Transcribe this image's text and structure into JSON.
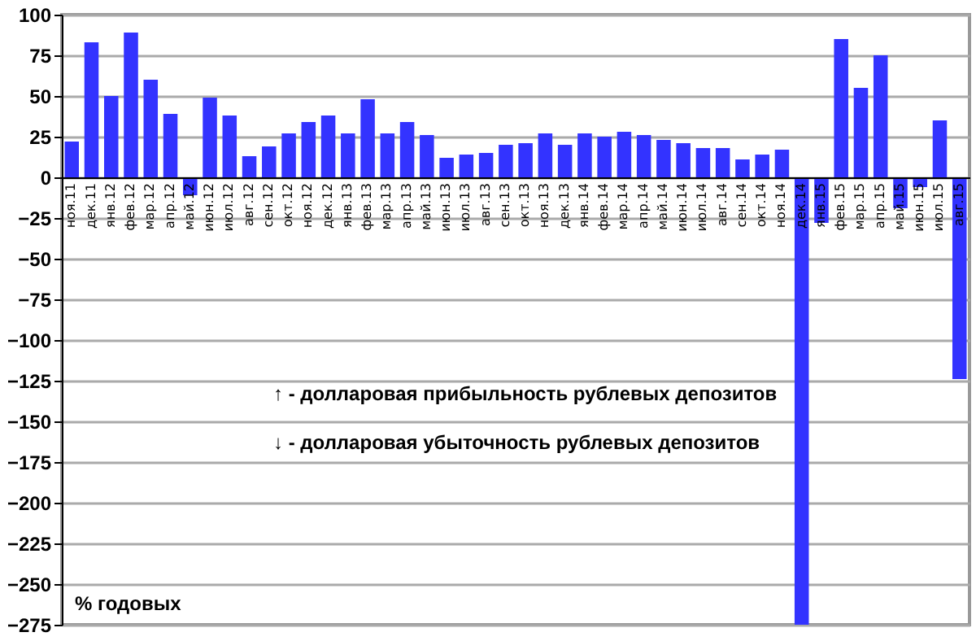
{
  "chart_data": {
    "type": "bar",
    "categories": [
      "ноя.11",
      "дек.11",
      "янв.12",
      "фев.12",
      "мар.12",
      "апр.12",
      "май.12",
      "июн.12",
      "июл.12",
      "авг.12",
      "сен.12",
      "окт.12",
      "ноя.12",
      "дек.12",
      "янв.13",
      "фев.13",
      "мар.13",
      "апр.13",
      "май.13",
      "июн.13",
      "июл.13",
      "авг.13",
      "сен.13",
      "окт.13",
      "ноя.13",
      "дек.13",
      "янв.14",
      "фев.14",
      "мар.14",
      "апр.14",
      "май.14",
      "июн.14",
      "июл.14",
      "авг.14",
      "сен.14",
      "окт.14",
      "ноя.14",
      "дек.14",
      "янв.15",
      "фев.15",
      "мар.15",
      "апр.15",
      "май.15",
      "июн.15",
      "июл.15",
      "авг.15"
    ],
    "values": [
      22,
      83,
      50,
      89,
      60,
      39,
      -11,
      49,
      38,
      13,
      19,
      27,
      34,
      38,
      27,
      48,
      27,
      34,
      26,
      12,
      14,
      15,
      20,
      21,
      27,
      20,
      27,
      25,
      28,
      26,
      23,
      21,
      18,
      18,
      11,
      14,
      17,
      -275,
      -28,
      85,
      55,
      75,
      -19,
      -6,
      35,
      -124
    ],
    "color": "#3333ff",
    "ylim": [
      -275,
      100
    ],
    "yticks": [
      -275,
      -250,
      -225,
      -200,
      -175,
      -150,
      -125,
      -100,
      -75,
      -50,
      -25,
      0,
      25,
      50,
      75,
      100
    ],
    "grid": "y",
    "annotations": [
      "↑ - долларовая  прибыльность  рублевых депозитов",
      "↓ - долларовая  убыточность  рублевых депозитов",
      "% годовых"
    ]
  }
}
